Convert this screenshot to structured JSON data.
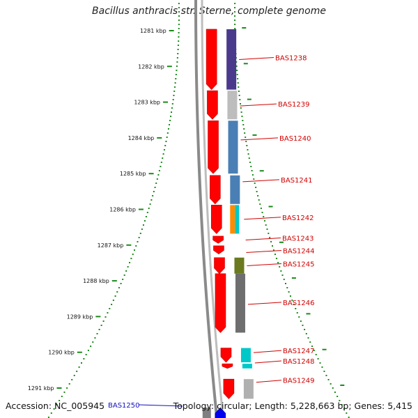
{
  "title": "Bacillus anthracis str. Sterne, complete genome",
  "footer": {
    "accession": "Accession: NC_005945",
    "summary": "Topology: circular; Length: 5,228,663 bp; Genes: 5,415"
  },
  "ticks": [
    {
      "kbp": 1281,
      "label": "1281 kbp"
    },
    {
      "kbp": 1282,
      "label": "1282 kbp"
    },
    {
      "kbp": 1283,
      "label": "1283 kbp"
    },
    {
      "kbp": 1284,
      "label": "1284 kbp"
    },
    {
      "kbp": 1285,
      "label": "1285 kbp"
    },
    {
      "kbp": 1286,
      "label": "1286 kbp"
    },
    {
      "kbp": 1287,
      "label": "1287 kbp"
    },
    {
      "kbp": 1288,
      "label": "1288 kbp"
    },
    {
      "kbp": 1289,
      "label": "1289 kbp"
    },
    {
      "kbp": 1290,
      "label": "1290 kbp"
    },
    {
      "kbp": 1291,
      "label": "1291 kbp"
    }
  ],
  "genes": [
    {
      "name": "BAS1238",
      "start_kbp": 1280.96,
      "end_kbp": 1282.65,
      "color": "#4a3a8c",
      "label_kbp": 1281.75
    },
    {
      "name": "BAS1239",
      "start_kbp": 1282.68,
      "end_kbp": 1283.48,
      "color": "#bdbdbd",
      "label_kbp": 1283.05
    },
    {
      "name": "BAS1240",
      "start_kbp": 1283.52,
      "end_kbp": 1285.0,
      "color": "#4a7fb5",
      "label_kbp": 1284.0
    },
    {
      "name": "BAS1241",
      "start_kbp": 1285.05,
      "end_kbp": 1285.85,
      "color": "#4a7fb5",
      "label_kbp": 1285.17
    },
    {
      "name": "BAS1242",
      "start_kbp": 1285.88,
      "end_kbp": 1286.68,
      "colors": [
        "#ff8c00",
        "#00c8c8"
      ],
      "label_kbp": 1286.22
    },
    {
      "name": "BAS1243",
      "start_kbp": 1286.75,
      "end_kbp": 1286.95,
      "color": null,
      "label_kbp": 1286.8
    },
    {
      "name": "BAS1244",
      "start_kbp": 1287.02,
      "end_kbp": 1287.25,
      "color": null,
      "label_kbp": 1287.15
    },
    {
      "name": "BAS1245",
      "start_kbp": 1287.35,
      "end_kbp": 1287.8,
      "color": "#6b7a1e",
      "label_kbp": 1287.52
    },
    {
      "name": "BAS1246",
      "start_kbp": 1287.8,
      "end_kbp": 1289.45,
      "color": "#6e6e6e",
      "label_kbp": 1288.6
    },
    {
      "name": "BAS1247",
      "start_kbp": 1289.88,
      "end_kbp": 1290.28,
      "color": "#00c8c8",
      "label_kbp": 1289.95
    },
    {
      "name": "BAS1248",
      "start_kbp": 1290.32,
      "end_kbp": 1290.45,
      "color": "#00c8c8",
      "label_kbp": 1290.24
    },
    {
      "name": "BAS1249",
      "start_kbp": 1290.75,
      "end_kbp": 1291.3,
      "color": "#b0b0b0",
      "label_kbp": 1290.78
    },
    {
      "name": "BAS1250",
      "start_kbp": 1291.55,
      "end_kbp": 1292.2,
      "color": "#808080",
      "label_kbp": 1291.85,
      "strand": "minus"
    }
  ],
  "colors": {
    "cds_forward": "#ff0000",
    "cds_reverse": "#0000ee",
    "backbone": "#8a8a8a",
    "tick": "#1a8a1a",
    "label_forward": "#d10000",
    "label_reverse": "#1010c0"
  }
}
